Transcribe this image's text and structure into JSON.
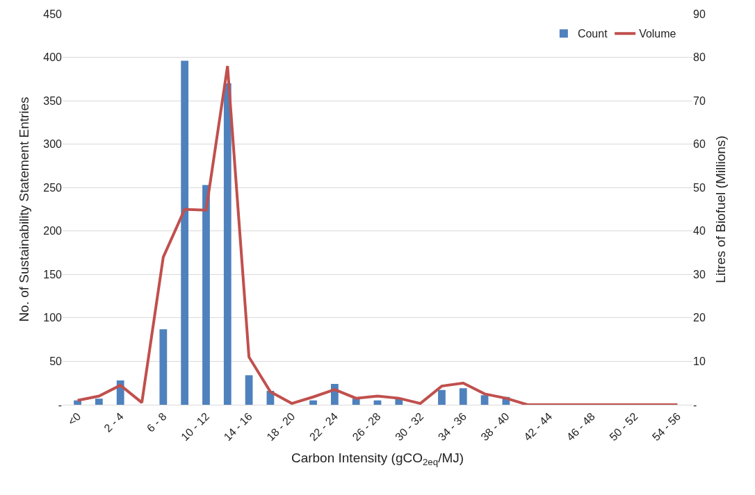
{
  "chart_data": {
    "type": "bar",
    "xlabel": "Carbon Intensity (gCO$_{2eq}$/MJ)",
    "ylabel": "No. of Sustainability Statement Entries",
    "y2label": "Litres of Biofuel (Millions)",
    "categories": [
      "<0",
      null,
      "2 - 4",
      null,
      "6 - 8",
      null,
      "10 - 12",
      null,
      "14 - 16",
      null,
      "18 - 20",
      null,
      "22 - 24",
      null,
      "26 - 28",
      null,
      "30 - 32",
      null,
      "34 - 36",
      null,
      "38 - 40",
      null,
      "42 - 44",
      null,
      "46 - 48",
      null,
      "50 - 52",
      null,
      "54 - 56"
    ],
    "series": [
      {
        "name": "Count",
        "type": "bar",
        "color": "#4f81bd",
        "values": [
          5,
          7,
          28,
          0,
          87,
          396,
          253,
          370,
          34,
          16,
          0,
          5,
          24,
          7,
          5,
          7,
          0,
          17,
          19,
          11,
          9,
          0,
          0,
          0,
          0,
          0,
          0,
          0,
          0
        ]
      },
      {
        "name": "Volume",
        "type": "line",
        "axis": "y2",
        "color": "#c0504d",
        "values": [
          1,
          2,
          4.5,
          0.5,
          34,
          45,
          44.8,
          78,
          11,
          3,
          0.3,
          1.8,
          3.5,
          1.5,
          2,
          1.5,
          0.3,
          4.3,
          5,
          2.5,
          1.5,
          0,
          0,
          0,
          0,
          0,
          0,
          0,
          0
        ]
      }
    ],
    "ylim": [
      0,
      450
    ],
    "yticks": [
      {
        "value": 0,
        "label": "-"
      },
      50,
      100,
      150,
      200,
      250,
      300,
      350,
      400,
      450
    ],
    "y2lim": [
      0,
      90
    ],
    "y2ticks": [
      {
        "value": 0,
        "label": "-"
      },
      10,
      20,
      30,
      40,
      50,
      60,
      70,
      80,
      90
    ],
    "grid": "y",
    "legend": "top right"
  }
}
